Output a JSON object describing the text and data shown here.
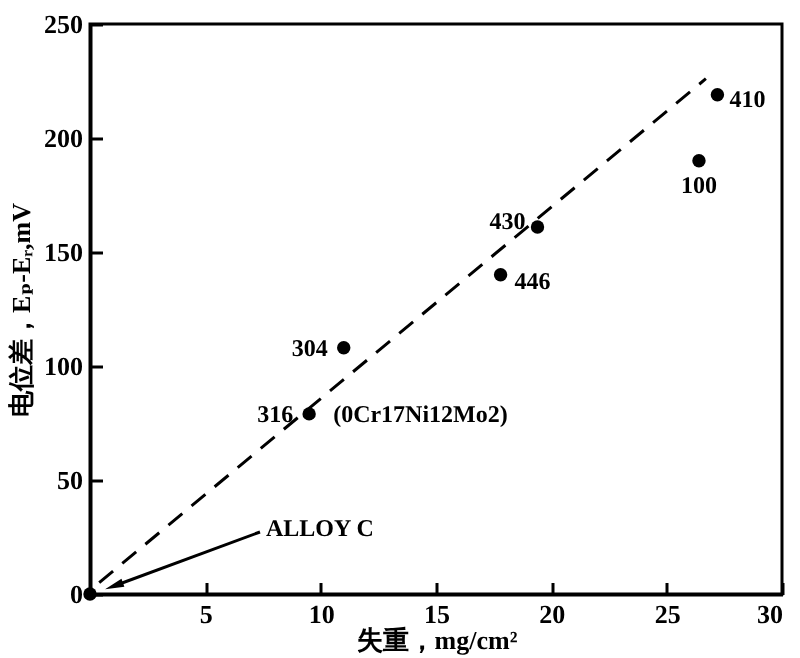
{
  "chart_data": {
    "type": "scatter",
    "xlabel": "失重，mg/cm²",
    "ylabel": "电位差，Eₚ-Eᵣ,mV",
    "series": [
      {
        "color": "#000000",
        "x": [
          0,
          9.5,
          11.0,
          17.8,
          19.4,
          26.4,
          27.2
        ],
        "values": [
          0,
          79,
          108,
          140,
          161,
          190,
          219
        ]
      },
      {
        "type": "line",
        "color": "#000000",
        "line_style": "dashed",
        "marker": "none",
        "x": [
          0.4,
          26.7
        ],
        "values": [
          5,
          226
        ]
      }
    ],
    "annotations": [
      "ALLOY C",
      {
        "text": "316",
        "x": 9.5,
        "y": 79
      },
      {
        "text": "(0Cr17Ni12Mo2)",
        "x": 9.5,
        "y": 79
      },
      {
        "text": "304",
        "x": 11.0,
        "y": 108
      },
      {
        "text": "446",
        "x": 17.8,
        "y": 140
      },
      {
        "text": "430",
        "x": 19.4,
        "y": 161
      },
      {
        "text": "100",
        "x": 26.4,
        "y": 190
      },
      {
        "text": "410",
        "x": 27.2,
        "y": 219
      }
    ],
    "marker": "circle",
    "grid": false,
    "xlim": [
      0,
      30
    ],
    "xticks": [
      5,
      10,
      15,
      20,
      25,
      30
    ],
    "ylim": [
      0,
      250
    ],
    "yticks": [
      0,
      50,
      100,
      150,
      200,
      250
    ]
  }
}
